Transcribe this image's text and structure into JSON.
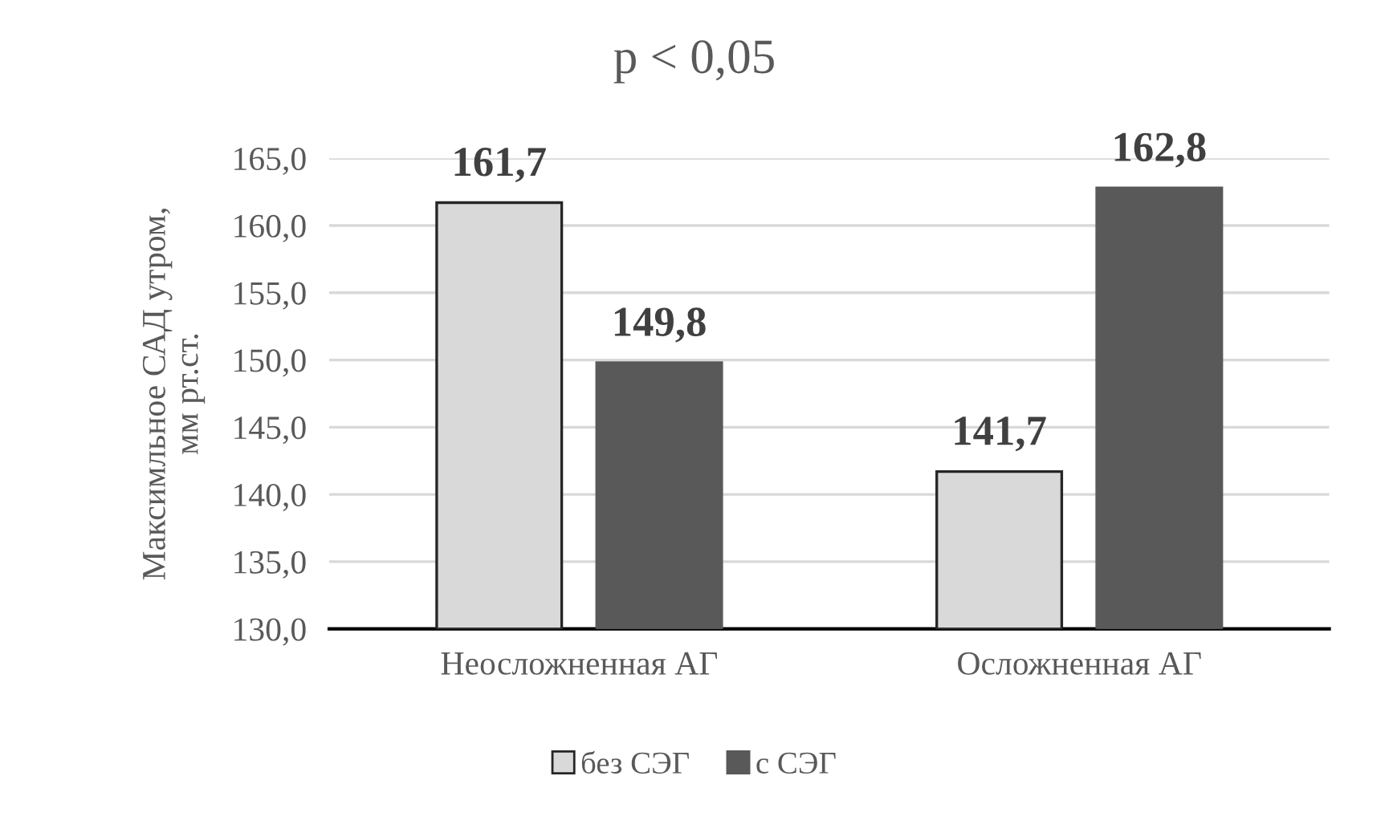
{
  "chart_data": {
    "type": "bar",
    "title": "p < 0,05",
    "ylabel": "Максимльное САД утром,\nмм рт.ст.",
    "categories": [
      "Неосложненная АГ",
      "Осложненная АГ"
    ],
    "series": [
      {
        "name": "без СЭГ",
        "color": "#d9d9d9",
        "values": [
          161.7,
          141.7
        ],
        "value_labels": [
          "161,7",
          "141,7"
        ]
      },
      {
        "name": "с СЭГ",
        "color": "#595959",
        "values": [
          149.8,
          162.8
        ],
        "value_labels": [
          "149,8",
          "162,8"
        ]
      }
    ],
    "ylim": [
      130,
      165
    ],
    "yticks": [
      {
        "value": 130,
        "label": "130,0"
      },
      {
        "value": 135,
        "label": "135,0"
      },
      {
        "value": 140,
        "label": "140,0"
      },
      {
        "value": 145,
        "label": "145,0"
      },
      {
        "value": 150,
        "label": "150,0"
      },
      {
        "value": 155,
        "label": "155,0"
      },
      {
        "value": 160,
        "label": "160,0"
      },
      {
        "value": 165,
        "label": "165,0"
      }
    ],
    "grid": "y",
    "legend": "bottom"
  }
}
